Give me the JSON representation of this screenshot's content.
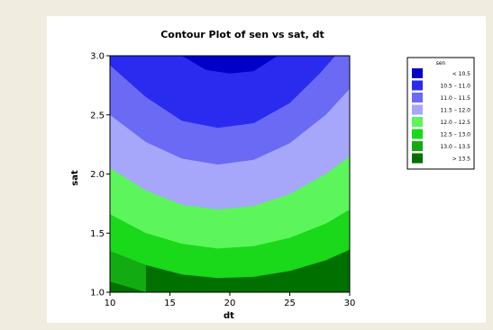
{
  "chart_data": {
    "type": "contour",
    "title": "Contour Plot of sen vs sat, dt",
    "xlabel": "dt",
    "ylabel": "sat",
    "xlim": [
      10,
      30
    ],
    "ylim": [
      1.0,
      3.0
    ],
    "x_ticks": [
      "10",
      "15",
      "20",
      "25",
      "30"
    ],
    "y_ticks": [
      "1.0",
      "1.5",
      "2.0",
      "2.5",
      "3.0"
    ],
    "legend_title": "sen",
    "legend_position": "right",
    "levels": [
      {
        "label": "< 10.5",
        "color": "#0000c8"
      },
      {
        "label": "10.5 – 11.0",
        "color": "#2b2bf0"
      },
      {
        "label": "11.0 – 11.5",
        "color": "#6a6af5"
      },
      {
        "label": "11.5 – 12.0",
        "color": "#a6a6fb"
      },
      {
        "label": "12.0 – 12.5",
        "color": "#5cf55c"
      },
      {
        "label": "12.5 – 13.0",
        "color": "#1ad81a"
      },
      {
        "label": "13.0 – 13.5",
        "color": "#12ac12"
      },
      {
        "label": "> 13.5",
        "color": "#007000"
      }
    ],
    "contour_lines": [
      {
        "level": "10.5",
        "points": [
          [
            16.0,
            3.0
          ],
          [
            18.0,
            2.88
          ],
          [
            20.0,
            2.85
          ],
          [
            22.0,
            2.87
          ],
          [
            24.0,
            3.0
          ]
        ]
      },
      {
        "level": "11.0",
        "points": [
          [
            10.0,
            2.92
          ],
          [
            13.0,
            2.65
          ],
          [
            16.0,
            2.45
          ],
          [
            19.0,
            2.39
          ],
          [
            22.0,
            2.43
          ],
          [
            25.0,
            2.6
          ],
          [
            27.5,
            2.85
          ],
          [
            28.8,
            3.0
          ]
        ]
      },
      {
        "level": "11.5",
        "points": [
          [
            10.0,
            2.5
          ],
          [
            13.0,
            2.27
          ],
          [
            16.0,
            2.13
          ],
          [
            19.0,
            2.08
          ],
          [
            22.0,
            2.12
          ],
          [
            25.0,
            2.26
          ],
          [
            28.0,
            2.5
          ],
          [
            30.0,
            2.72
          ]
        ]
      },
      {
        "level": "12.0",
        "points": [
          [
            10.0,
            2.05
          ],
          [
            13.0,
            1.86
          ],
          [
            16.0,
            1.74
          ],
          [
            19.0,
            1.7
          ],
          [
            22.0,
            1.73
          ],
          [
            25.0,
            1.83
          ],
          [
            28.0,
            2.0
          ],
          [
            30.0,
            2.15
          ]
        ]
      },
      {
        "level": "12.5",
        "points": [
          [
            10.0,
            1.66
          ],
          [
            13.0,
            1.5
          ],
          [
            16.0,
            1.41
          ],
          [
            19.0,
            1.37
          ],
          [
            22.0,
            1.39
          ],
          [
            25.0,
            1.46
          ],
          [
            28.0,
            1.58
          ],
          [
            30.0,
            1.7
          ]
        ]
      },
      {
        "level": "13.0",
        "points": [
          [
            10.0,
            1.35
          ],
          [
            13.0,
            1.23
          ],
          [
            16.0,
            1.15
          ],
          [
            19.0,
            1.12
          ],
          [
            22.0,
            1.13
          ],
          [
            25.0,
            1.18
          ],
          [
            28.0,
            1.27
          ],
          [
            30.0,
            1.36
          ]
        ]
      },
      {
        "level": "13.5",
        "points": [
          [
            10.0,
            1.09
          ],
          [
            12.0,
            1.03
          ],
          [
            13.0,
            1.0
          ]
        ]
      }
    ]
  }
}
